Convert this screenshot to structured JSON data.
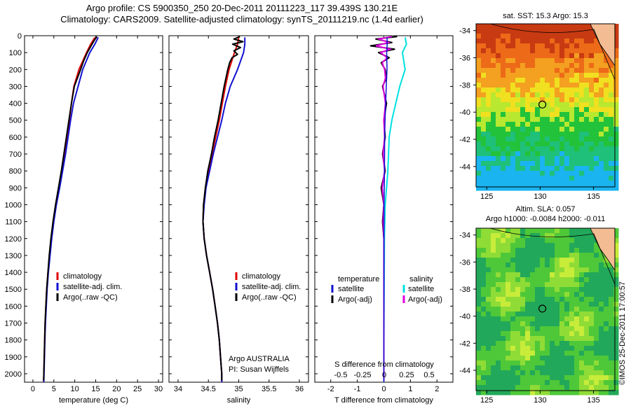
{
  "titles": {
    "line1": "Argo profile: CS 5900350_250 20-Dec-2011 20111223_117 39.439S 130.21E",
    "line2": "Climatology: CARS2009. Satellite-adjusted climatology: synTS_20111219.nc (1.4d earlier)"
  },
  "side_label": "©IMOS 25-Dec-2011 17:00:57",
  "colors": {
    "climatology": "#e00000",
    "satellite": "#1010d0",
    "argo": "#000000",
    "sat_salinity": "#00e0e0",
    "argo_salinity_adj": "#e000e0"
  },
  "chart_data": [
    {
      "type": "line",
      "xlabel": "temperature (deg C)",
      "ylabel": "",
      "xlim": [
        -2,
        31
      ],
      "ylim": [
        2050,
        0
      ],
      "xticks": [
        0,
        5,
        10,
        15,
        20,
        25,
        30
      ],
      "yticks": [
        0,
        100,
        200,
        300,
        400,
        500,
        600,
        700,
        800,
        900,
        1000,
        1100,
        1200,
        1300,
        1400,
        1500,
        1600,
        1700,
        1800,
        1900,
        2000
      ],
      "legend": [
        "climatology",
        "satellite-adj. clim.",
        "Argo(..raw -QC)"
      ],
      "legend_position": "lower-center",
      "series": [
        {
          "name": "climatology",
          "depth": [
            10,
            50,
            100,
            200,
            300,
            400,
            500,
            600,
            700,
            800,
            900,
            1000,
            1100,
            1200,
            1300,
            1400,
            1500,
            1600,
            1700,
            1800,
            1900,
            2000,
            2050
          ],
          "values": [
            14.8,
            13.8,
            12.8,
            11.0,
            9.8,
            9.2,
            8.7,
            8.1,
            7.5,
            6.9,
            6.2,
            5.5,
            4.9,
            4.4,
            4.0,
            3.6,
            3.3,
            3.1,
            2.9,
            2.8,
            2.7,
            2.6,
            2.55
          ]
        },
        {
          "name": "satellite-adj. clim.",
          "depth": [
            10,
            50,
            100,
            200,
            300,
            400,
            500,
            600,
            700,
            800,
            900,
            1000,
            1100,
            1200,
            1300,
            1400,
            1500,
            1600,
            1700,
            1800,
            1900,
            2000,
            2050
          ],
          "values": [
            15.6,
            14.8,
            13.6,
            11.9,
            10.8,
            9.7,
            9.0,
            8.4,
            7.8,
            7.1,
            6.4,
            5.6,
            5.0,
            4.5,
            4.1,
            3.7,
            3.4,
            3.2,
            3.0,
            2.85,
            2.75,
            2.65,
            2.6
          ]
        },
        {
          "name": "Argo(..raw -QC)",
          "depth": [
            5,
            30,
            60,
            100,
            150,
            200,
            300,
            400,
            500,
            600,
            700,
            800,
            900,
            1000,
            1100,
            1200,
            1300,
            1400,
            1500,
            1600,
            1700,
            1800,
            1900,
            2000,
            2040
          ],
          "values": [
            15.3,
            14.6,
            13.9,
            13.0,
            12.1,
            11.4,
            9.9,
            9.2,
            8.6,
            8.0,
            7.4,
            6.8,
            6.1,
            5.4,
            4.8,
            4.3,
            3.9,
            3.6,
            3.3,
            3.1,
            2.9,
            2.8,
            2.7,
            2.6,
            2.55
          ]
        }
      ]
    },
    {
      "type": "line",
      "xlabel": "salinity",
      "xlim": [
        33.85,
        36.15
      ],
      "ylim": [
        2050,
        0
      ],
      "xticks": [
        34,
        34.5,
        35,
        35.5,
        36
      ],
      "xtick_labels": [
        "34",
        "34.5",
        "35",
        "35.5",
        "36"
      ],
      "legend": [
        "climatology",
        "satellite-adj. clim.",
        "Argo(..raw -QC)"
      ],
      "annotations": [
        "Argo AUSTRALIA",
        "PI: Susan Wijffels"
      ],
      "series": [
        {
          "name": "climatology",
          "depth": [
            10,
            50,
            100,
            200,
            300,
            400,
            500,
            600,
            700,
            800,
            900,
            1000,
            1100,
            1200,
            1300,
            1400,
            1500,
            1600,
            1700,
            1800,
            1900,
            2000,
            2050
          ],
          "values": [
            35.0,
            34.98,
            34.93,
            34.84,
            34.78,
            34.73,
            34.68,
            34.62,
            34.56,
            34.5,
            34.45,
            34.42,
            34.41,
            34.43,
            34.47,
            34.52,
            34.57,
            34.61,
            34.65,
            34.68,
            34.7,
            34.72,
            34.72
          ]
        },
        {
          "name": "satellite-adj. clim.",
          "depth": [
            10,
            50,
            100,
            200,
            300,
            400,
            500,
            600,
            700,
            800,
            900,
            1000,
            1100,
            1200,
            1300,
            1400,
            1500,
            1600,
            1700,
            1800,
            1900,
            2000,
            2050
          ],
          "values": [
            35.1,
            35.1,
            35.08,
            34.98,
            34.86,
            34.78,
            34.72,
            34.65,
            34.58,
            34.52,
            34.46,
            34.43,
            34.41,
            34.43,
            34.47,
            34.52,
            34.57,
            34.61,
            34.65,
            34.68,
            34.7,
            34.72,
            34.72
          ]
        },
        {
          "name": "Argo(..raw -QC)",
          "depth": [
            5,
            20,
            35,
            50,
            70,
            90,
            110,
            130,
            160,
            200,
            300,
            400,
            500,
            600,
            700,
            800,
            900,
            1000,
            1100,
            1200,
            1300,
            1400,
            1500,
            1600,
            1700,
            1800,
            1900,
            2000,
            2040
          ],
          "values": [
            35.02,
            34.92,
            35.07,
            34.9,
            35.03,
            34.92,
            34.98,
            34.89,
            34.85,
            34.82,
            34.76,
            34.71,
            34.66,
            34.6,
            34.55,
            34.49,
            34.45,
            34.42,
            34.41,
            34.43,
            34.47,
            34.52,
            34.57,
            34.61,
            34.65,
            34.68,
            34.7,
            34.72,
            34.72
          ]
        }
      ]
    },
    {
      "type": "line",
      "xlabel": "T difference from climatology",
      "xlim": [
        -2.6,
        2.6
      ],
      "ylim": [
        2050,
        0
      ],
      "xticks": [
        -2,
        -1,
        0,
        1,
        2
      ],
      "xtick_labels": [
        "-2",
        "-1",
        "0",
        "1",
        "2"
      ],
      "top_axis_label": "S difference from climatology",
      "top_ticks": [
        "-0.5",
        "-0.25",
        "0",
        "0.25",
        "0.5"
      ],
      "legend_temperature": {
        "heading": "temperature",
        "items": [
          "satellite",
          "Argo(-adj)"
        ]
      },
      "legend_salinity": {
        "heading": "salinity",
        "items": [
          "satellite",
          "Argo(-adj)"
        ]
      },
      "series": [
        {
          "name": "satellite",
          "depth": [
            10,
            50,
            100,
            200,
            300,
            400,
            500,
            600,
            800,
            1000,
            1200,
            1500,
            1800,
            2050
          ],
          "values": [
            0.8,
            0.85,
            0.7,
            0.8,
            0.6,
            0.45,
            0.3,
            0.2,
            0.15,
            0.05,
            0.02,
            0.01,
            0.0,
            0.0
          ]
        },
        {
          "name": "Argo(-adj)",
          "depth": [
            5,
            20,
            40,
            60,
            80,
            100,
            130,
            160,
            200,
            250,
            300,
            400,
            500,
            600,
            700,
            800,
            900,
            1000,
            1100,
            1200,
            1400,
            1600,
            1800,
            2000,
            2040
          ],
          "values": [
            0.5,
            -0.3,
            0.3,
            -0.5,
            0.4,
            -0.2,
            0.2,
            -0.1,
            0.05,
            0.1,
            -0.05,
            0.1,
            0.0,
            0.05,
            -0.05,
            0.05,
            -0.1,
            0.0,
            -0.05,
            0.0,
            0.0,
            0.0,
            0.0,
            0.0,
            0.0
          ]
        }
      ]
    },
    {
      "type": "heatmap",
      "title": "sat. SST: 15.3 Argo: 15.3",
      "xlim": [
        124,
        137
      ],
      "ylim": [
        -45.5,
        -33.5
      ],
      "xticks": [
        125,
        130,
        135
      ],
      "yticks": [
        -34,
        -36,
        -38,
        -40,
        -42,
        -44
      ],
      "marker": {
        "lon": 130.21,
        "lat": -39.44
      }
    },
    {
      "type": "heatmap",
      "title_line1": "Altim. SLA: 0.057",
      "title_line2": "Argo h1000: -0.0084 h2000: -0.011",
      "xlim": [
        124,
        137
      ],
      "ylim": [
        -45.5,
        -33.5
      ],
      "xticks": [
        125,
        130,
        135
      ],
      "yticks": [
        -34,
        -36,
        -38,
        -40,
        -42,
        -44
      ],
      "marker": {
        "lon": 130.21,
        "lat": -39.44
      }
    }
  ]
}
